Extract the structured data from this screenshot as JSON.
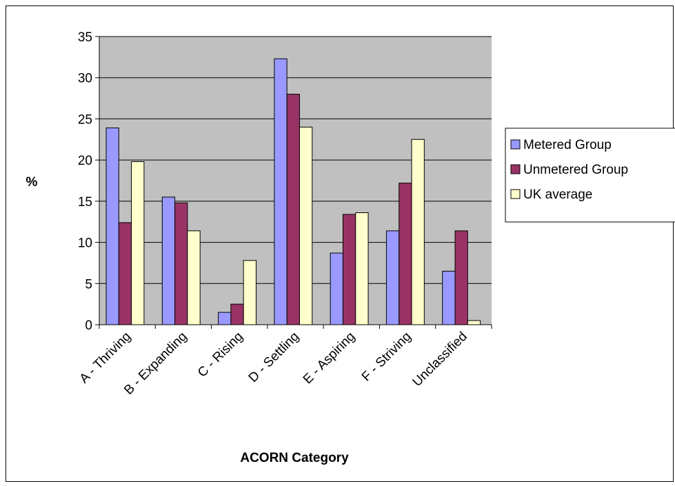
{
  "chart_data": {
    "type": "bar",
    "title": "",
    "xlabel": "ACORN Category",
    "ylabel": "%",
    "ylim": [
      0,
      35
    ],
    "yticks": [
      0,
      5,
      10,
      15,
      20,
      25,
      30,
      35
    ],
    "grid": true,
    "legend_position": "right",
    "categories": [
      "A - Thriving",
      "B - Expanding",
      "C - Rising",
      "D - Settling",
      "E - Aspiring",
      "F - Striving",
      "Unclassified"
    ],
    "series": [
      {
        "name": "Metered Group",
        "color": "#9999ff",
        "values": [
          23.9,
          15.5,
          1.5,
          32.3,
          8.7,
          11.4,
          6.5
        ]
      },
      {
        "name": "Unmetered Group",
        "color": "#993366",
        "values": [
          12.4,
          14.8,
          2.5,
          28.0,
          13.4,
          17.2,
          11.4
        ]
      },
      {
        "name": "UK average",
        "color": "#ffffcc",
        "values": [
          19.8,
          11.4,
          7.8,
          24.0,
          13.6,
          22.5,
          0.5
        ]
      }
    ],
    "plot_background": "#c0c0c0"
  }
}
